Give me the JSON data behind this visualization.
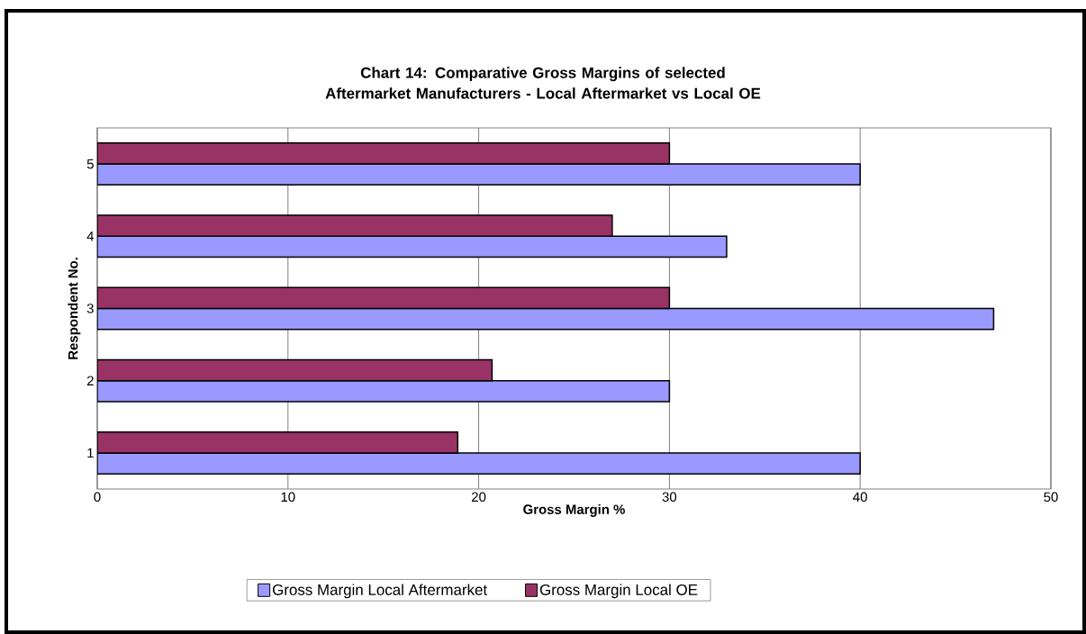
{
  "chart_data": {
    "type": "bar",
    "orientation": "horizontal",
    "title": "Chart 14:  Comparative Gross Margins of selected Aftermarket Manufacturers - Local Aftermarket vs Local OE",
    "xlabel": "Gross Margin %",
    "ylabel": "Respondent No.",
    "categories": [
      "5",
      "4",
      "3",
      "2",
      "1"
    ],
    "series": [
      {
        "name": "Gross Margin  Local Aftermarket",
        "color": "#9999ff",
        "values": [
          40,
          33,
          47,
          30,
          40
        ]
      },
      {
        "name": "Gross Margin Local OE",
        "color": "#993366",
        "values": [
          30,
          27,
          30,
          20.7,
          18.9
        ]
      }
    ],
    "xlim": [
      0,
      50
    ],
    "xticks": [
      0,
      10,
      20,
      30,
      40,
      50
    ],
    "grid": "x",
    "legend": "bottom"
  }
}
